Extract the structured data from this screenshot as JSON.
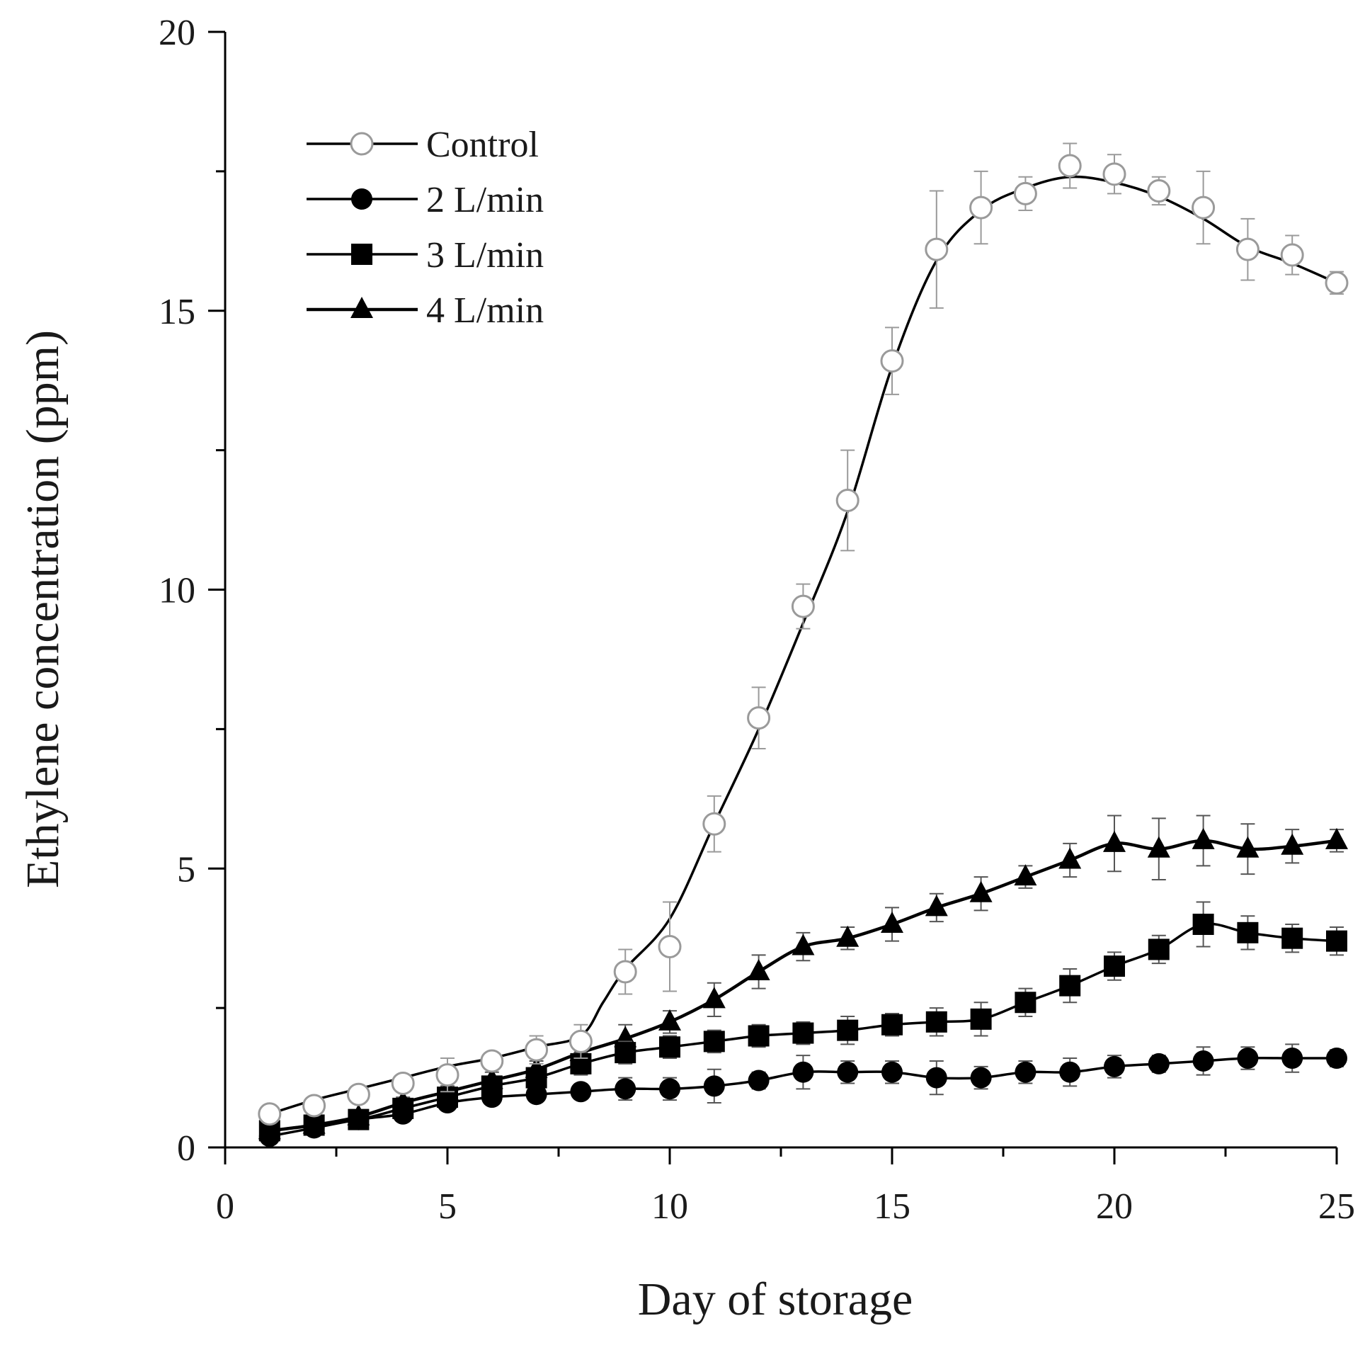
{
  "chart_data": {
    "type": "line",
    "title": "",
    "xlabel": "Day of storage",
    "ylabel": "Ethylene concentration (ppm)",
    "xlim": [
      0,
      25
    ],
    "ylim": [
      0,
      20
    ],
    "xticks": [
      0,
      5,
      10,
      15,
      20,
      25
    ],
    "yticks": [
      0,
      5,
      10,
      15,
      20
    ],
    "grid": false,
    "legend_position": "top-left",
    "x": [
      1,
      2,
      3,
      4,
      5,
      6,
      7,
      8,
      9,
      10,
      11,
      12,
      13,
      14,
      15,
      16,
      17,
      18,
      19,
      20,
      21,
      22,
      23,
      24,
      25
    ],
    "series": [
      {
        "name": "Control",
        "marker": "open-circle",
        "color": "#aaaaaa",
        "values": [
          0.6,
          0.75,
          0.95,
          1.15,
          1.3,
          1.55,
          1.75,
          1.9,
          3.15,
          3.6,
          5.8,
          7.7,
          9.7,
          11.6,
          14.1,
          16.1,
          16.85,
          17.1,
          17.6,
          17.45,
          17.15,
          16.85,
          16.1,
          16.0,
          15.5
        ],
        "errors": [
          0.1,
          0.1,
          0.1,
          0.15,
          0.3,
          0.15,
          0.25,
          0.3,
          0.4,
          0.8,
          0.5,
          0.55,
          0.4,
          0.9,
          0.6,
          1.05,
          0.65,
          0.3,
          0.4,
          0.35,
          0.25,
          0.65,
          0.55,
          0.35,
          0.2
        ],
        "curve": [
          [
            1,
            0.6
          ],
          [
            2,
            0.85
          ],
          [
            3,
            1.05
          ],
          [
            4,
            1.25
          ],
          [
            5,
            1.45
          ],
          [
            6,
            1.6
          ],
          [
            7,
            1.8
          ],
          [
            8,
            2.0
          ],
          [
            8.5,
            2.6
          ],
          [
            9,
            3.2
          ],
          [
            10,
            4.1
          ],
          [
            11,
            5.8
          ],
          [
            12,
            7.5
          ],
          [
            13,
            9.4
          ],
          [
            14,
            11.4
          ],
          [
            15,
            14.0
          ],
          [
            16,
            15.9
          ],
          [
            17,
            16.8
          ],
          [
            18,
            17.2
          ],
          [
            19,
            17.4
          ],
          [
            20,
            17.3
          ],
          [
            21,
            17.05
          ],
          [
            22,
            16.65
          ],
          [
            23,
            16.15
          ],
          [
            24,
            15.85
          ],
          [
            25,
            15.5
          ]
        ]
      },
      {
        "name": "2 L/min",
        "marker": "filled-circle",
        "color": "#000000",
        "values": [
          0.2,
          0.35,
          0.5,
          0.6,
          0.8,
          0.9,
          0.95,
          1.0,
          1.05,
          1.05,
          1.1,
          1.2,
          1.35,
          1.35,
          1.35,
          1.25,
          1.25,
          1.35,
          1.35,
          1.45,
          1.5,
          1.55,
          1.6,
          1.6,
          1.6
        ],
        "errors": [
          0.1,
          0.1,
          0.1,
          0.1,
          0.1,
          0.1,
          0.1,
          0.1,
          0.2,
          0.2,
          0.3,
          0.15,
          0.3,
          0.2,
          0.2,
          0.3,
          0.2,
          0.2,
          0.25,
          0.2,
          0.15,
          0.25,
          0.2,
          0.25,
          0.15
        ]
      },
      {
        "name": "3 L/min",
        "marker": "filled-square",
        "color": "#000000",
        "values": [
          0.3,
          0.4,
          0.5,
          0.7,
          0.9,
          1.1,
          1.25,
          1.5,
          1.7,
          1.8,
          1.9,
          2.0,
          2.05,
          2.1,
          2.2,
          2.25,
          2.3,
          2.6,
          2.9,
          3.25,
          3.55,
          4.0,
          3.85,
          3.75,
          3.7
        ],
        "errors": [
          0.1,
          0.1,
          0.1,
          0.1,
          0.1,
          0.15,
          0.15,
          0.2,
          0.2,
          0.2,
          0.2,
          0.2,
          0.2,
          0.25,
          0.2,
          0.25,
          0.3,
          0.25,
          0.3,
          0.25,
          0.25,
          0.4,
          0.3,
          0.25,
          0.25
        ]
      },
      {
        "name": "4 L/min",
        "marker": "filled-triangle",
        "color": "#000000",
        "values": [
          0.3,
          0.4,
          0.55,
          0.8,
          1.0,
          1.2,
          1.4,
          1.7,
          1.95,
          2.25,
          2.65,
          3.15,
          3.6,
          3.75,
          4.0,
          4.3,
          4.55,
          4.85,
          5.15,
          5.45,
          5.35,
          5.5,
          5.35,
          5.4,
          5.5
        ],
        "errors": [
          0.1,
          0.1,
          0.1,
          0.1,
          0.1,
          0.15,
          0.15,
          0.2,
          0.25,
          0.2,
          0.3,
          0.3,
          0.25,
          0.2,
          0.3,
          0.25,
          0.3,
          0.2,
          0.3,
          0.5,
          0.55,
          0.45,
          0.45,
          0.3,
          0.2
        ]
      }
    ]
  }
}
